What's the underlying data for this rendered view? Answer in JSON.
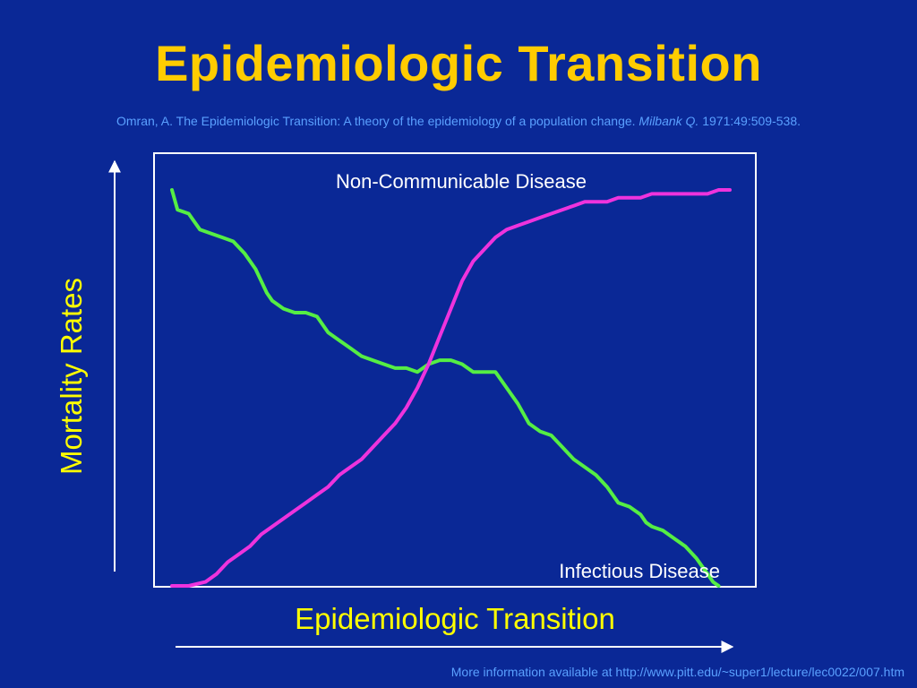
{
  "slide": {
    "title": "Epidemiologic Transition",
    "citation_prefix": "Omran, A.  The Epidemiologic Transition: A theory of the epidemiology of a population change. ",
    "citation_journal": "Milbank Q.",
    "citation_suffix": " 1971:49:509-538.",
    "footer": "More information available at http://www.pitt.edu/~super1/lecture/lec0022/007.htm"
  },
  "colors": {
    "background": "#0a2896",
    "title": "#ffcc00",
    "axis_label": "#ffff00",
    "citation": "#5aa0ff",
    "frame": "#ffffff",
    "infectious_series": "#55ee44",
    "noncommunicable_series": "#ee33dd"
  },
  "chart_data": {
    "type": "line",
    "xlabel": "Epidemiologic Transition",
    "ylabel": "Mortality Rates",
    "xlim": [
      0,
      100
    ],
    "ylim": [
      0,
      100
    ],
    "grid": false,
    "legend": "none",
    "series": [
      {
        "name": "Infectious Disease",
        "color": "#55ee44",
        "x": [
          0,
          1,
          3,
          5,
          7,
          9,
          11,
          13,
          15,
          16,
          17,
          18,
          20,
          22,
          24,
          26,
          28,
          30,
          32,
          34,
          36,
          38,
          40,
          42,
          44,
          46,
          48,
          50,
          52,
          54,
          56,
          58,
          60,
          62,
          64,
          66,
          68,
          70,
          72,
          74,
          76,
          78,
          80,
          82,
          84,
          85,
          86,
          88,
          90,
          92,
          94,
          96,
          97,
          98
        ],
        "y": [
          100,
          95,
          94,
          90,
          89,
          88,
          87,
          84,
          80,
          77,
          74,
          72,
          70,
          69,
          69,
          68,
          64,
          62,
          60,
          58,
          57,
          56,
          55,
          55,
          54,
          56,
          57,
          57,
          56,
          54,
          54,
          54,
          50,
          46,
          41,
          39,
          38,
          35,
          32,
          30,
          28,
          25,
          21,
          20,
          18,
          16,
          15,
          14,
          12,
          10,
          7,
          3,
          1,
          0
        ]
      },
      {
        "name": "Non-Communicable Disease",
        "color": "#ee33dd",
        "x": [
          0,
          3,
          6,
          8,
          10,
          12,
          14,
          16,
          18,
          20,
          22,
          24,
          26,
          28,
          30,
          32,
          34,
          36,
          38,
          40,
          42,
          44,
          46,
          48,
          50,
          52,
          54,
          56,
          58,
          60,
          62,
          64,
          66,
          68,
          70,
          72,
          74,
          76,
          78,
          80,
          82,
          84,
          86,
          88,
          90,
          92,
          94,
          96,
          98,
          100
        ],
        "y": [
          0,
          0,
          1,
          3,
          6,
          8,
          10,
          13,
          15,
          17,
          19,
          21,
          23,
          25,
          28,
          30,
          32,
          35,
          38,
          41,
          45,
          50,
          56,
          63,
          70,
          77,
          82,
          85,
          88,
          90,
          91,
          92,
          93,
          94,
          95,
          96,
          97,
          97,
          97,
          98,
          98,
          98,
          99,
          99,
          99,
          99,
          99,
          99,
          100,
          100
        ]
      }
    ]
  },
  "annotations": {
    "noncommunicable": "Non-Communicable Disease",
    "infectious": "Infectious Disease"
  }
}
